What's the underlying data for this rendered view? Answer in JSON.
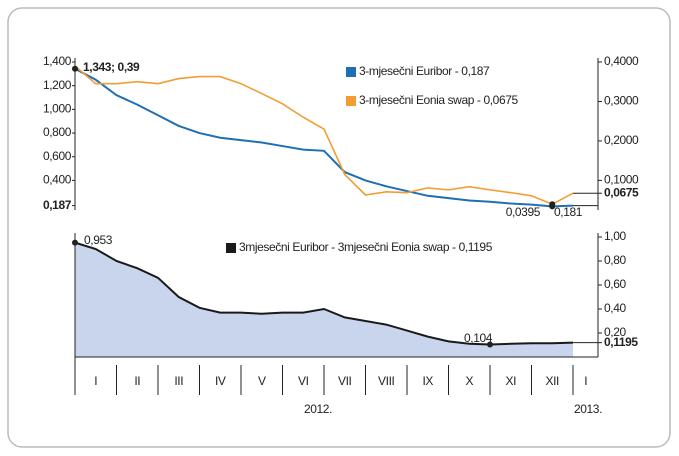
{
  "chart_data": [
    {
      "type": "line",
      "legend": "top-right",
      "ylim": [
        0.15,
        1.4
      ],
      "yticks": [
        {
          "value": 1.4,
          "label": "1,400"
        },
        {
          "value": 1.2,
          "label": "1,200"
        },
        {
          "value": 1.0,
          "label": "1,000"
        },
        {
          "value": 0.8,
          "label": "0,800"
        },
        {
          "value": 0.6,
          "label": "0,600"
        },
        {
          "value": 0.4,
          "label": "0,400"
        },
        {
          "value": 0.187,
          "label": "0,187"
        }
      ],
      "y2lim": [
        0.025,
        0.4
      ],
      "y2ticks": [
        {
          "value": 0.4,
          "label": "0,4000"
        },
        {
          "value": 0.3,
          "label": "0,3000"
        },
        {
          "value": 0.2,
          "label": "0,2000"
        },
        {
          "value": 0.1,
          "label": "0,1000"
        },
        {
          "value": 0.0675,
          "label": "0,0675"
        }
      ],
      "annotations": [
        "1,343; 0,39",
        "0,0395",
        "0,181"
      ],
      "series": [
        {
          "name": "3-mjesečni Euribor - 0,187",
          "color": "#1f6fb4",
          "axis": "y",
          "values": [
            1.343,
            1.25,
            1.12,
            1.04,
            0.95,
            0.86,
            0.8,
            0.76,
            0.74,
            0.72,
            0.69,
            0.66,
            0.65,
            0.47,
            0.4,
            0.35,
            0.31,
            0.27,
            0.25,
            0.23,
            0.22,
            0.205,
            0.195,
            0.181,
            0.187
          ]
        },
        {
          "name": "3-mjesečni Eonia swap - 0,0675",
          "color": "#f39c33",
          "axis": "y2",
          "values": [
            0.39,
            0.345,
            0.345,
            0.35,
            0.345,
            0.358,
            0.363,
            0.363,
            0.345,
            0.32,
            0.294,
            0.26,
            0.23,
            0.115,
            0.063,
            0.071,
            0.069,
            0.081,
            0.076,
            0.084,
            0.076,
            0.069,
            0.061,
            0.0395,
            0.0675
          ]
        }
      ]
    },
    {
      "type": "area",
      "legend": "top-right",
      "ylim": [
        0,
        1.0
      ],
      "y2ticks": [
        {
          "value": 1.0,
          "label": "1,00"
        },
        {
          "value": 0.8,
          "label": "0,80"
        },
        {
          "value": 0.6,
          "label": "0,60"
        },
        {
          "value": 0.4,
          "label": "0,40"
        },
        {
          "value": 0.2,
          "label": "0,20"
        },
        {
          "value": 0.1195,
          "label": "0,1195"
        }
      ],
      "annotations": [
        "0,953",
        "0,104"
      ],
      "series": [
        {
          "name": "3mjesečni Euribor - 3mjesečni Eonia swap - 0,1195",
          "color": "#c9d5ec",
          "values": [
            0.953,
            0.9,
            0.8,
            0.74,
            0.66,
            0.5,
            0.41,
            0.37,
            0.37,
            0.36,
            0.37,
            0.37,
            0.4,
            0.33,
            0.3,
            0.27,
            0.22,
            0.17,
            0.13,
            0.11,
            0.104,
            0.11,
            0.115,
            0.115,
            0.1195
          ]
        }
      ],
      "x_labels": [
        "I",
        "II",
        "III",
        "IV",
        "V",
        "VI",
        "VII",
        "VIII",
        "IX",
        "X",
        "XI",
        "XII",
        "I"
      ],
      "year_labels": [
        "2012.",
        "2013."
      ]
    }
  ]
}
